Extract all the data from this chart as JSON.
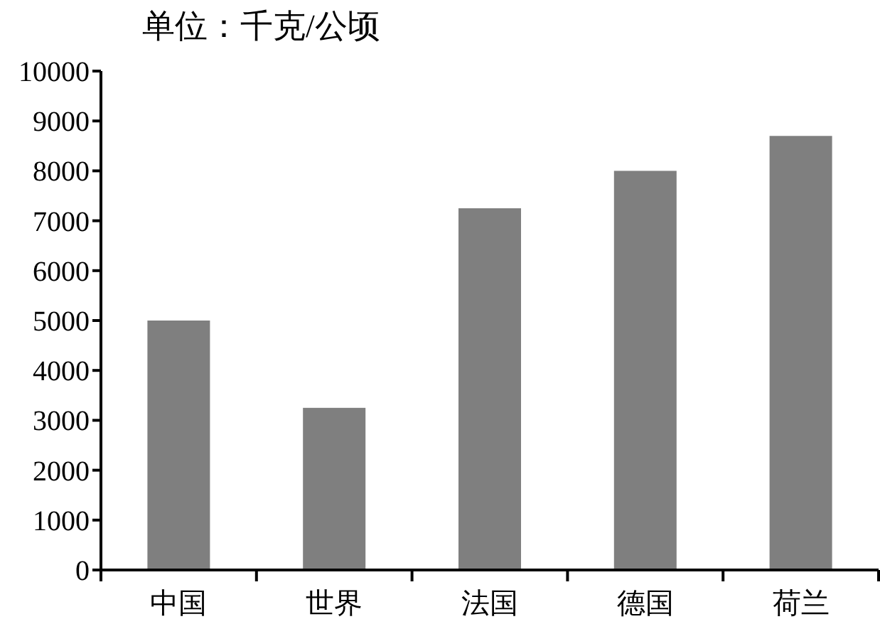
{
  "chart_data": {
    "type": "bar",
    "title": "单位：千克/公顷",
    "categories": [
      "中国",
      "世界",
      "法国",
      "德国",
      "荷兰"
    ],
    "values": [
      5000,
      3250,
      7250,
      8000,
      8700
    ],
    "color": "#7f7f7f",
    "ylim": [
      0,
      10000
    ],
    "yticks": [
      0,
      1000,
      2000,
      3000,
      4000,
      5000,
      6000,
      7000,
      8000,
      9000,
      10000
    ],
    "grid": false
  }
}
